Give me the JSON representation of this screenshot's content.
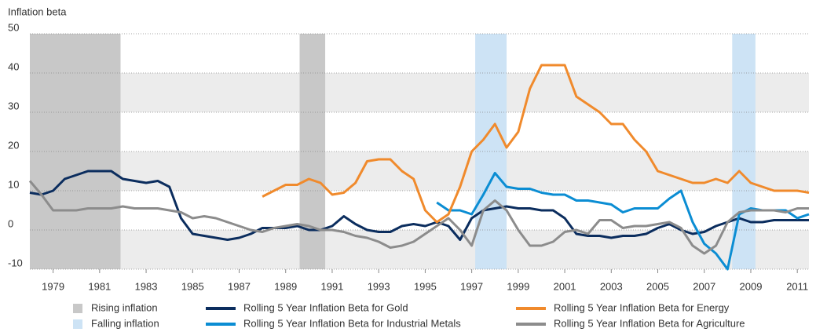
{
  "chart_data": {
    "type": "line",
    "y_label": "Inflation beta",
    "x": [
      1978,
      1978.5,
      1979,
      1979.5,
      1980,
      1980.5,
      1981,
      1981.5,
      1982,
      1982.5,
      1983,
      1983.5,
      1984,
      1984.5,
      1985,
      1985.5,
      1986,
      1986.5,
      1987,
      1987.5,
      1988,
      1988.5,
      1989,
      1989.5,
      1990,
      1990.5,
      1991,
      1991.5,
      1992,
      1992.5,
      1993,
      1993.5,
      1994,
      1994.5,
      1995,
      1995.5,
      1996,
      1996.5,
      1997,
      1997.5,
      1998,
      1998.5,
      1999,
      1999.5,
      2000,
      2000.5,
      2001,
      2001.5,
      2002,
      2002.5,
      2003,
      2003.5,
      2004,
      2004.5,
      2005,
      2005.5,
      2006,
      2006.5,
      2007,
      2007.5,
      2008,
      2008.5,
      2009,
      2009.5,
      2010,
      2010.5,
      2011,
      2011.5
    ],
    "series": [
      {
        "name": "Rolling 5 Year Inflation Beta for Gold",
        "color": "#0b2d5e",
        "values": [
          9.5,
          9,
          10,
          13,
          14,
          15,
          15,
          15,
          13,
          12.5,
          12,
          12.5,
          11,
          3,
          -1,
          -1.5,
          -2,
          -2.5,
          -2,
          -1,
          0.5,
          0.5,
          0.5,
          1,
          0,
          0,
          1,
          3.5,
          1.5,
          0,
          -0.5,
          -0.5,
          1,
          1.5,
          1,
          2,
          1,
          -2.5,
          3,
          5,
          5.5,
          6,
          5.5,
          5.5,
          5,
          5,
          3,
          -1,
          -1.5,
          -1.5,
          -2,
          -1.5,
          -1.5,
          -1,
          0.5,
          1.5,
          0,
          -1,
          -0.5,
          1,
          2,
          3,
          2,
          2,
          2.5,
          2.5,
          2.5,
          2.5
        ]
      },
      {
        "name": "Rolling 5 Year Inflation Beta for Industrial Metals",
        "color": "#0b8dd3",
        "values": [
          null,
          null,
          null,
          null,
          null,
          null,
          null,
          null,
          null,
          null,
          null,
          null,
          null,
          null,
          null,
          null,
          null,
          null,
          null,
          null,
          null,
          null,
          null,
          null,
          null,
          null,
          null,
          null,
          null,
          null,
          null,
          null,
          null,
          null,
          null,
          7,
          5,
          5,
          4,
          9,
          14.5,
          11,
          10.5,
          10.5,
          9.5,
          9,
          9,
          7.5,
          7.5,
          7,
          6.5,
          4.5,
          5.5,
          5.5,
          5.5,
          8,
          10,
          2,
          -3.5,
          -6,
          -10,
          4,
          5.5,
          5,
          5,
          5,
          3,
          4
        ]
      },
      {
        "name": "Rolling 5 Year Inflation Beta for Energy",
        "color": "#f08a2c",
        "values": [
          null,
          null,
          null,
          null,
          null,
          null,
          null,
          null,
          null,
          null,
          null,
          null,
          null,
          null,
          null,
          null,
          null,
          null,
          null,
          null,
          8.5,
          10,
          11.5,
          11.5,
          13,
          12,
          9,
          9.5,
          12,
          17.5,
          18,
          18,
          15,
          13,
          5,
          2,
          4,
          11,
          20,
          23,
          27,
          21,
          25,
          36,
          42,
          42,
          42,
          34,
          32,
          30,
          27,
          27,
          23,
          20,
          15,
          14,
          13,
          12,
          12,
          13,
          12,
          15,
          12,
          11,
          10,
          10,
          10,
          9.5
        ]
      },
      {
        "name": "Rolling 5 Year Inflation Beta for Agriculture",
        "color": "#8c8c8c",
        "values": [
          12.5,
          9,
          5,
          5,
          5,
          5.5,
          5.5,
          5.5,
          6,
          5.5,
          5.5,
          5.5,
          5,
          4.5,
          3,
          3.5,
          3,
          2,
          1,
          0,
          -0.5,
          0.5,
          1,
          1.5,
          1,
          0,
          0,
          -0.5,
          -1.5,
          -2,
          -3,
          -4.5,
          -4,
          -3,
          -1,
          1,
          3,
          0,
          -4,
          5,
          7.5,
          5,
          0,
          -4,
          -4,
          -3,
          -0.5,
          0,
          -1,
          2.5,
          2.5,
          0.5,
          1,
          1,
          1.5,
          2,
          0.5,
          -4,
          -6,
          -4,
          2,
          4.5,
          5,
          5,
          5,
          4.5,
          5.5,
          5.5
        ]
      }
    ],
    "periods": [
      {
        "name": "Rising inflation",
        "color": "#c8c8c8",
        "ranges": [
          [
            1978,
            1981.9
          ],
          [
            1989.6,
            1990.7
          ]
        ]
      },
      {
        "name": "Falling inflation",
        "color": "#cde3f5",
        "ranges": [
          [
            1997.15,
            1998.5
          ],
          [
            2008.2,
            2009.2
          ]
        ]
      }
    ],
    "xlim": [
      1978,
      2011.5
    ],
    "xticks": [
      1979,
      1981,
      1983,
      1985,
      1987,
      1989,
      1991,
      1993,
      1995,
      1997,
      1999,
      2001,
      2003,
      2005,
      2007,
      2009,
      2011
    ],
    "ylim": [
      -10,
      50
    ],
    "yticks": [
      -10,
      0,
      10,
      20,
      30,
      40,
      50
    ],
    "grid": true,
    "bands": true,
    "band_color": "#ececec"
  }
}
